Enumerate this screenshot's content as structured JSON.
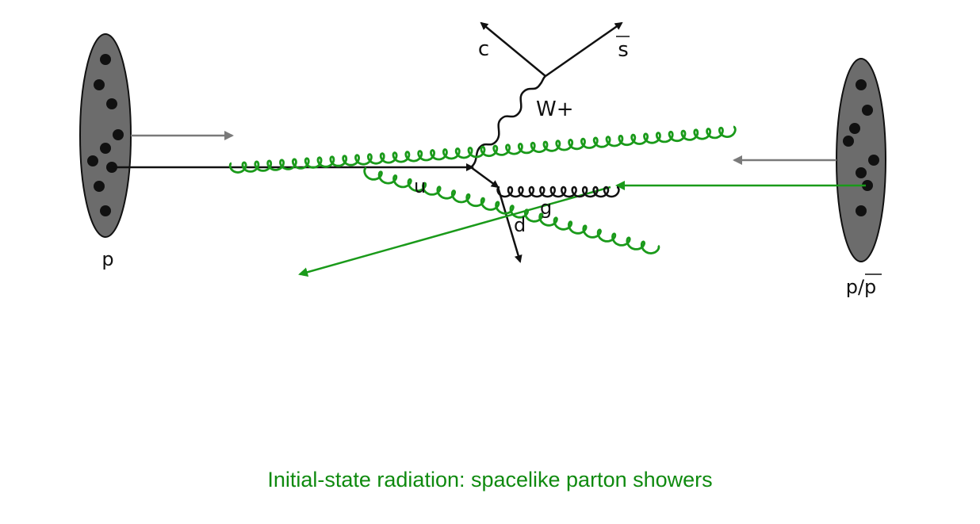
{
  "labels": {
    "proton_left": "p",
    "proton_right": "p/p",
    "charm": "c",
    "strange_bar": "s",
    "w_boson": "W+",
    "u_quark": "u",
    "d_quark": "d",
    "gluon": "g"
  },
  "caption": "Initial-state radiation: spacelike parton showers",
  "colors": {
    "black": "#111111",
    "gluon_green": "#1a9a1a",
    "caption_green": "#0f8a0f",
    "hadron_fill": "#6c6c6c",
    "beam_arrow_gray": "#7a7a7a"
  }
}
